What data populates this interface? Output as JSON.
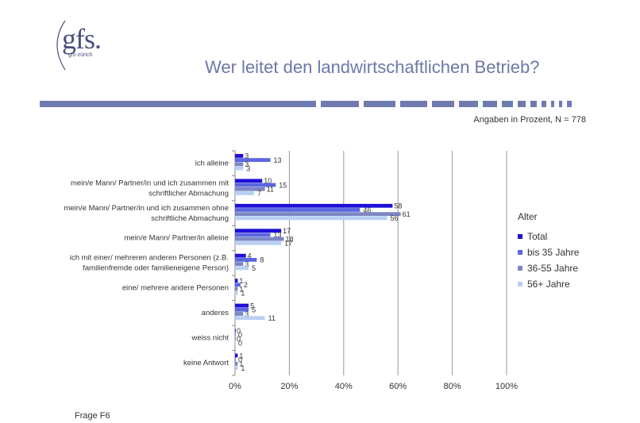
{
  "logo": {
    "text": "gfs.",
    "sub": "gfs-zürich"
  },
  "header": {
    "title": "Wer leitet den landwirtschaftlichen Betrieb?"
  },
  "subtitle": "Angaben in Prozent, N = 778",
  "footer": "Frage F6",
  "colors": {
    "Total": "#1f0fd6",
    "bis 35 Jahre": "#5b67e0",
    "36-55 Jahre": "#7c86c4",
    "56+ Jahre": "#b9cff2",
    "brand": "#6f7ab0"
  },
  "chart_data": {
    "type": "bar",
    "orientation": "horizontal",
    "categories": [
      [
        "ich alleine"
      ],
      [
        "mein/e Mann/ Partner/in und ich zusammen mit",
        "schriftlicher Abmachung"
      ],
      [
        "mein/e Mann/ Partner/in und ich zusammen ohne",
        "schriftliche Abmachung"
      ],
      [
        "mein/e Mann/ Partner/in alleine"
      ],
      [
        "ich mit einer/ mehreren anderen Personen (z.B.",
        "familienfremde oder familieneigene Person)"
      ],
      [
        "eine/ mehrere andere Personen"
      ],
      [
        "anderes"
      ],
      [
        "weiss nicht"
      ],
      [
        "keine Antwort"
      ]
    ],
    "series": [
      {
        "name": "Total",
        "values": [
          3,
          10,
          58,
          17,
          4,
          1,
          5,
          0,
          1
        ]
      },
      {
        "name": "bis 35 Jahre",
        "values": [
          13,
          15,
          46,
          13,
          8,
          2,
          5,
          0,
          0
        ]
      },
      {
        "name": "36-55 Jahre",
        "values": [
          3,
          11,
          61,
          18,
          3,
          1,
          3,
          0,
          1
        ]
      },
      {
        "name": "56+ Jahre",
        "values": [
          3,
          7,
          56,
          17,
          5,
          1,
          11,
          0,
          1
        ]
      }
    ],
    "xlim": [
      0,
      100
    ],
    "xticks": [
      "0%",
      "20%",
      "40%",
      "60%",
      "80%",
      "100%"
    ],
    "grid": true,
    "legend": {
      "title": "Alter",
      "placement": "right"
    }
  }
}
